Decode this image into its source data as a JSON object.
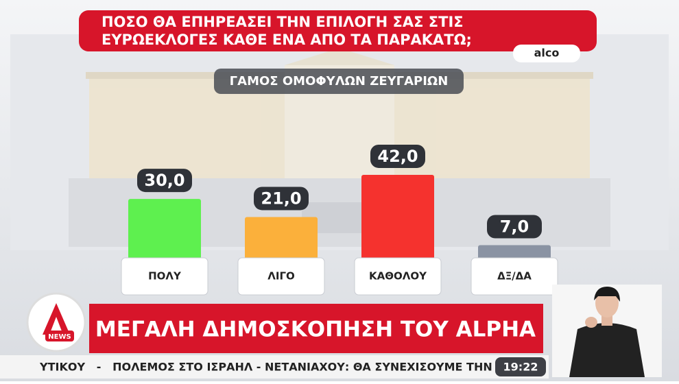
{
  "chart_data": {
    "type": "bar",
    "title": "ΠΟΣΟ ΘΑ ΕΠΗΡΕΑΣΕΙ ΤΗΝ ΕΠΙΛΟΓΗ ΣΑΣ ΣΤΙΣ ΕΥΡΩΕΚΛΟΓΕΣ ΚΑΘΕ ΕΝΑ ΑΠΟ ΤΑ ΠΑΡΑΚΑΤΩ;",
    "source": "alco",
    "subtitle": "ΓΑΜΟΣ ΟΜΟΦΥΛΩΝ ΖΕΥΓΑΡΙΩΝ",
    "categories": [
      "ΠΟΛΥ",
      "ΛΙΓΟ",
      "ΚΑΘΟΛΟΥ",
      "ΔΞ/ΔΑ"
    ],
    "values": [
      30,
      21,
      42,
      7
    ],
    "value_labels": [
      "30,0",
      "21,0",
      "42,0",
      "7,0"
    ],
    "colors": [
      "#5ef04f",
      "#fbb03b",
      "#f5322e",
      "#8a93a3"
    ]
  },
  "logo_text": "NEWS",
  "banner": "ΜΕΓΑΛΗ ΔΗΜΟΣΚΟΠΗΣΗ ΤΟΥ ALPHA",
  "ticker": "ΥΤΙΚΟΥ   -   ΠΟΛΕΜΟΣ ΣΤΟ ΙΣΡΑΗΛ - ΝΕΤΑΝΙΑΧΟΥ: ΘΑ ΣΥΝΕΧΙΣΟΥΜΕ ΤΗΝ ΕΠΙΘΕΣΗ",
  "time": "19:22"
}
